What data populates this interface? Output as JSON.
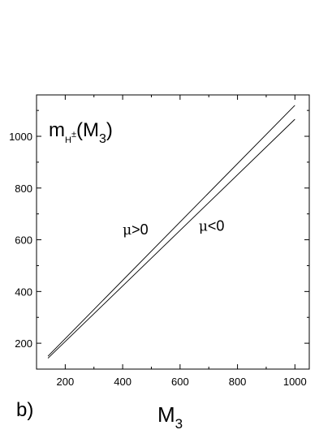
{
  "chart_data": {
    "type": "line",
    "panel_label": "b)",
    "title": {
      "base": "m",
      "sub": "H",
      "sup": "±",
      "arg_open": "(M",
      "arg_sub": "3",
      "arg_close": ")"
    },
    "xlabel": {
      "base": "M",
      "sub": "3"
    },
    "ylabel": "",
    "xlim": [
      100,
      1050
    ],
    "ylim": [
      100,
      1160
    ],
    "x_ticks": [
      200,
      400,
      600,
      800,
      1000
    ],
    "y_ticks": [
      200,
      400,
      600,
      800,
      1000
    ],
    "x_tick_labels": [
      "200",
      "400",
      "600",
      "800",
      "1000"
    ],
    "y_tick_labels": [
      "200",
      "400",
      "600",
      "800",
      "1000"
    ],
    "grid": false,
    "series": [
      {
        "x": [
          140,
          1000
        ],
        "y": [
          150,
          1120
        ]
      },
      {
        "x": [
          140,
          1000
        ],
        "y": [
          142,
          1066
        ]
      }
    ],
    "annotations": [
      {
        "greek": "μ",
        "text": ">0",
        "x": 400,
        "y": 620
      },
      {
        "greek": "μ",
        "text": "<0",
        "x": 665,
        "y": 635
      }
    ],
    "line_color": "#000000"
  }
}
